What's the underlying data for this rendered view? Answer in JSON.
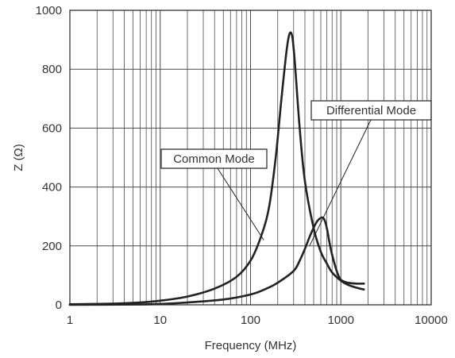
{
  "chart_data": {
    "type": "line",
    "xlabel": "Frequency (MHz)",
    "ylabel": "Z (Ω)",
    "x_scale": "log",
    "xlim": [
      1,
      10000
    ],
    "ylim": [
      0,
      1000
    ],
    "x_ticks": [
      1,
      10,
      100,
      1000,
      10000
    ],
    "x_tick_labels": [
      "1",
      "10",
      "100",
      "1000",
      "10000"
    ],
    "y_ticks": [
      0,
      200,
      400,
      600,
      800,
      1000
    ],
    "y_tick_labels": [
      "0",
      "200",
      "400",
      "600",
      "800",
      "1000"
    ],
    "grid": true,
    "colors": {
      "line": "#222222",
      "grid": "#4a4a4a",
      "text": "#333333"
    },
    "series": [
      {
        "name": "Common Mode",
        "x": [
          1,
          3,
          6,
          10,
          20,
          40,
          70,
          100,
          130,
          160,
          190,
          220,
          250,
          270,
          290,
          310,
          350,
          400,
          500,
          600,
          700,
          800,
          1000,
          1200,
          1500,
          1800
        ],
        "y": [
          2,
          4,
          8,
          14,
          28,
          55,
          95,
          150,
          230,
          330,
          500,
          700,
          860,
          920,
          910,
          820,
          600,
          420,
          260,
          180,
          140,
          110,
          82,
          68,
          58,
          52
        ]
      },
      {
        "name": "Differential Mode",
        "x": [
          1,
          5,
          10,
          20,
          50,
          100,
          150,
          200,
          300,
          350,
          400,
          450,
          500,
          550,
          600,
          630,
          660,
          700,
          750,
          800,
          900,
          1000,
          1200,
          1500,
          1800
        ],
        "y": [
          0,
          1,
          3,
          8,
          18,
          35,
          55,
          75,
          115,
          150,
          190,
          230,
          262,
          285,
          295,
          296,
          288,
          260,
          210,
          170,
          115,
          85,
          75,
          72,
          72
        ]
      }
    ],
    "annotations": [
      {
        "text": "Common Mode",
        "target_series": 0,
        "target": [
          140,
          220
        ]
      },
      {
        "text": "Differential Mode",
        "target_series": 1,
        "target": [
          450,
          200
        ]
      }
    ]
  }
}
